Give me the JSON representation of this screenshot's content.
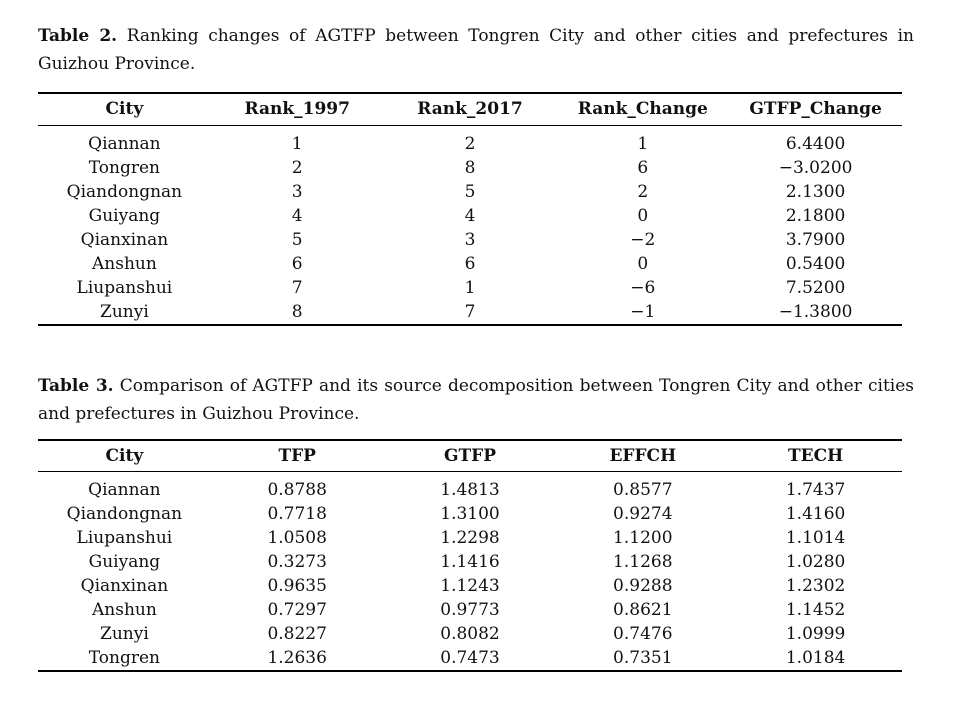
{
  "page": {
    "background_color": "#ffffff",
    "text_color": "#111111",
    "rule_color": "#000000"
  },
  "table2": {
    "caption_label": "Table 2.",
    "caption_line1": "Ranking changes of AGTFP between Tongren City and other cities and prefectures in",
    "caption_line2": "Guizhou Province.",
    "columns": [
      "City",
      "Rank_1997",
      "Rank_2017",
      "Rank_Change",
      "GTFP_Change"
    ],
    "rows": [
      {
        "city": "Qiannan",
        "rank_1997": "1",
        "rank_2017": "2",
        "rank_change": "1",
        "gtfp_change": "6.4400"
      },
      {
        "city": "Tongren",
        "rank_1997": "2",
        "rank_2017": "8",
        "rank_change": "6",
        "gtfp_change": "−3.0200"
      },
      {
        "city": "Qiandongnan",
        "rank_1997": "3",
        "rank_2017": "5",
        "rank_change": "2",
        "gtfp_change": "2.1300"
      },
      {
        "city": "Guiyang",
        "rank_1997": "4",
        "rank_2017": "4",
        "rank_change": "0",
        "gtfp_change": "2.1800"
      },
      {
        "city": "Qianxinan",
        "rank_1997": "5",
        "rank_2017": "3",
        "rank_change": "−2",
        "gtfp_change": "3.7900"
      },
      {
        "city": "Anshun",
        "rank_1997": "6",
        "rank_2017": "6",
        "rank_change": "0",
        "gtfp_change": "0.5400"
      },
      {
        "city": "Liupanshui",
        "rank_1997": "7",
        "rank_2017": "1",
        "rank_change": "−6",
        "gtfp_change": "7.5200"
      },
      {
        "city": "Zunyi",
        "rank_1997": "8",
        "rank_2017": "7",
        "rank_change": "−1",
        "gtfp_change": "−1.3800"
      }
    ]
  },
  "table3": {
    "caption_label": "Table 3.",
    "caption_line1": "Comparison of AGTFP and its source decomposition between Tongren City and other cities",
    "caption_line2": "and prefectures in Guizhou Province.",
    "columns": [
      "City",
      "TFP",
      "GTFP",
      "EFFCH",
      "TECH"
    ],
    "rows": [
      {
        "city": "Qiannan",
        "tfp": "0.8788",
        "gtfp": "1.4813",
        "effch": "0.8577",
        "tech": "1.7437"
      },
      {
        "city": "Qiandongnan",
        "tfp": "0.7718",
        "gtfp": "1.3100",
        "effch": "0.9274",
        "tech": "1.4160"
      },
      {
        "city": "Liupanshui",
        "tfp": "1.0508",
        "gtfp": "1.2298",
        "effch": "1.1200",
        "tech": "1.1014"
      },
      {
        "city": "Guiyang",
        "tfp": "0.3273",
        "gtfp": "1.1416",
        "effch": "1.1268",
        "tech": "1.0280"
      },
      {
        "city": "Qianxinan",
        "tfp": "0.9635",
        "gtfp": "1.1243",
        "effch": "0.9288",
        "tech": "1.2302"
      },
      {
        "city": "Anshun",
        "tfp": "0.7297",
        "gtfp": "0.9773",
        "effch": "0.8621",
        "tech": "1.1452"
      },
      {
        "city": "Zunyi",
        "tfp": "0.8227",
        "gtfp": "0.8082",
        "effch": "0.7476",
        "tech": "1.0999"
      },
      {
        "city": "Tongren",
        "tfp": "1.2636",
        "gtfp": "0.7473",
        "effch": "0.7351",
        "tech": "1.0184"
      }
    ]
  }
}
